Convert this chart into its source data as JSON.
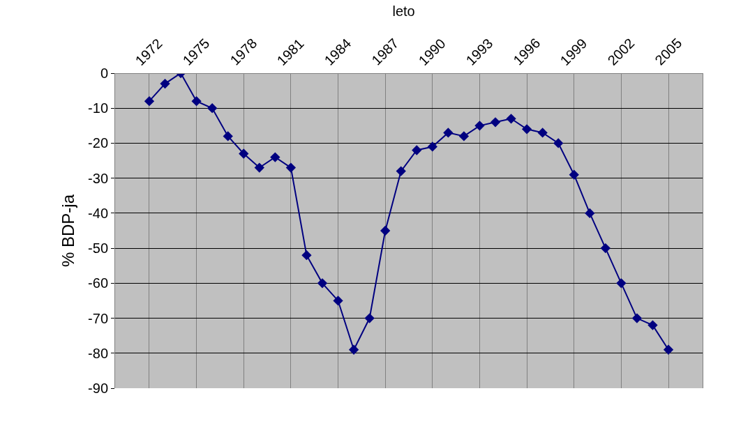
{
  "chart_data": {
    "type": "line",
    "title": "leto",
    "ylabel": "% BDP-ja",
    "categories": [
      "1972",
      null,
      null,
      "1975",
      null,
      null,
      "1978",
      null,
      null,
      "1981",
      null,
      null,
      "1984",
      null,
      null,
      "1987",
      null,
      null,
      "1990",
      null,
      null,
      "1993",
      null,
      null,
      "1996",
      null,
      null,
      "1999",
      null,
      null,
      "2002",
      null,
      null,
      "2005"
    ],
    "series": [
      {
        "color": "#000080",
        "values": [
          -8,
          -3,
          0,
          -8,
          -10,
          -18,
          -23,
          -27,
          -24,
          -27,
          -52,
          -60,
          -65,
          -79,
          -70,
          -45,
          -28,
          -22,
          -21,
          -17,
          -18,
          -15,
          -14,
          -13,
          -16,
          -17,
          -20,
          -29,
          -40,
          -50,
          -60,
          -70,
          -72,
          -79
        ]
      }
    ],
    "ylim": [
      -90,
      0
    ],
    "yticks": [
      -90,
      -80,
      -70,
      -60,
      -50,
      -40,
      -30,
      -20,
      -10,
      0
    ],
    "grid": true,
    "legend": false,
    "marker": "diamond",
    "line_style": "solid"
  }
}
